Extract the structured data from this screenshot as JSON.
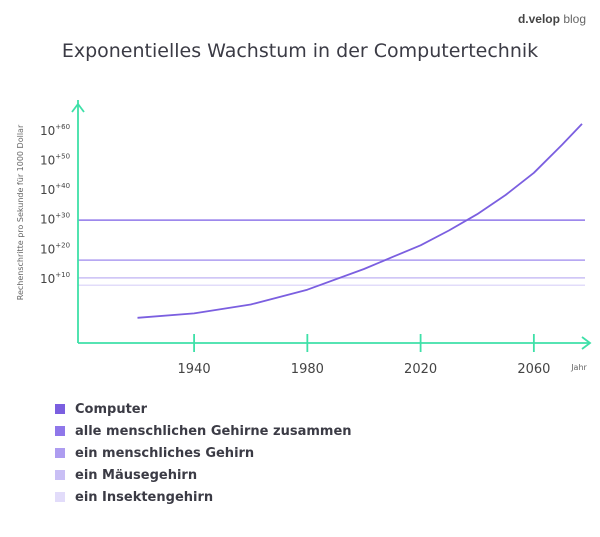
{
  "brand": {
    "name": "d.velop",
    "suffix": "blog"
  },
  "chart_data": {
    "type": "line",
    "title": "Exponentielles Wachstum in der Computertechnik",
    "ylabel": "Rechenschritte pro Sekunde für 1000 Dollar",
    "xlabel": "Jahr",
    "y_scale": "log10",
    "x_ticks": [
      1940,
      1980,
      2020,
      2060
    ],
    "y_ticks": [
      {
        "value": 10,
        "base": "10",
        "exp": "+10"
      },
      {
        "value": 20,
        "base": "10",
        "exp": "+20"
      },
      {
        "value": 30,
        "base": "10",
        "exp": "+30"
      },
      {
        "value": 40,
        "base": "10",
        "exp": "+40"
      },
      {
        "value": 50,
        "base": "10",
        "exp": "+50"
      },
      {
        "value": 60,
        "base": "10",
        "exp": "+60"
      }
    ],
    "xlim": [
      1899,
      2077
    ],
    "ylim": [
      -12,
      64
    ],
    "grid": false,
    "legend_position": "bottom-left",
    "series": [
      {
        "name": "Computer",
        "color": "#7b5fe0",
        "x": [
          1920,
          1940,
          1960,
          1980,
          2000,
          2010,
          2020,
          2030,
          2040,
          2050,
          2060,
          2070,
          2077
        ],
        "y": [
          -3.5,
          -2,
          1,
          6,
          13,
          17,
          21,
          26,
          31.5,
          38,
          45.5,
          55,
          62
        ]
      },
      {
        "name": "alle menschlichen Gehirne zusammen",
        "color": "#8f77ea",
        "level": 29.5
      },
      {
        "name": "ein menschliches Gehirn",
        "color": "#ad9cf0",
        "level": 16
      },
      {
        "name": "ein Mäusegehirn",
        "color": "#c9bff5",
        "level": 10
      },
      {
        "name": "ein Insektengehirn",
        "color": "#e2dcfa",
        "level": 7.5
      }
    ]
  },
  "colors": {
    "axis": "#3ee0a8",
    "text": "#3b3b45",
    "tick_label": "#444444"
  }
}
